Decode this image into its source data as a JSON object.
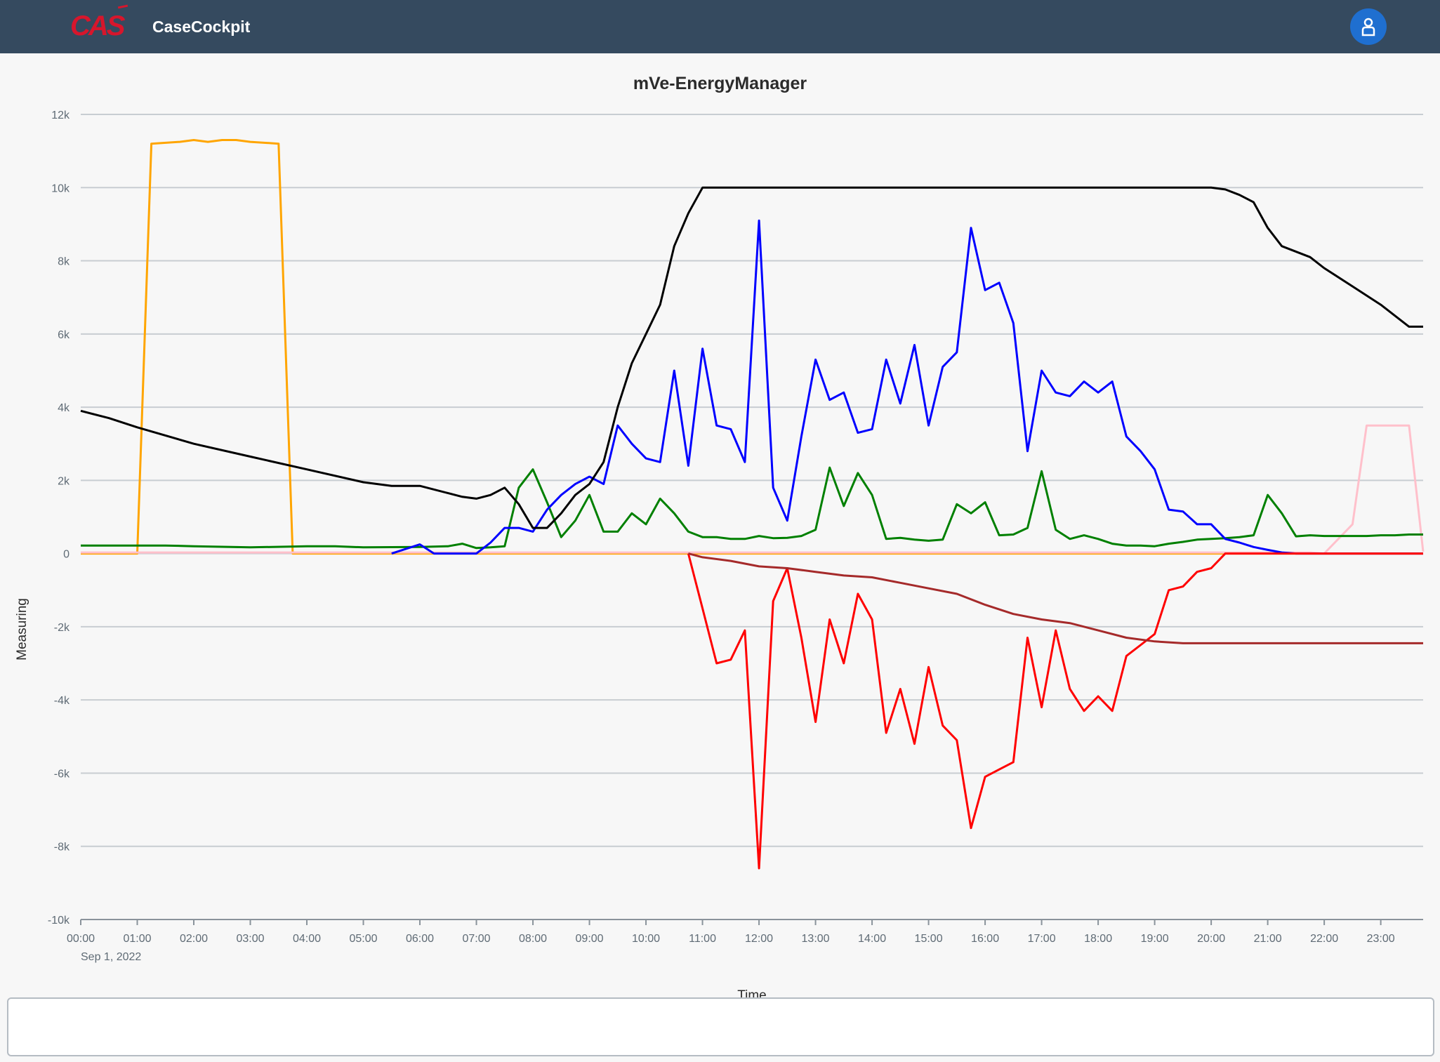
{
  "header": {
    "logo_text": "CAS",
    "app_title": "CaseCockpit",
    "avatar_icon": "user-icon"
  },
  "chart_data": {
    "type": "line",
    "title": "mVe-EnergyManager",
    "ylabel": "Measuring",
    "xlabel": "Time",
    "ylim": [
      -10000,
      12000
    ],
    "xlim": [
      0,
      23.75
    ],
    "y_ticks": [
      {
        "value": 12000,
        "label": "12k"
      },
      {
        "value": 10000,
        "label": "10k"
      },
      {
        "value": 8000,
        "label": "8k"
      },
      {
        "value": 6000,
        "label": "6k"
      },
      {
        "value": 4000,
        "label": "4k"
      },
      {
        "value": 2000,
        "label": "2k"
      },
      {
        "value": 0,
        "label": "0"
      },
      {
        "value": -2000,
        "label": "-2k"
      },
      {
        "value": -4000,
        "label": "-4k"
      },
      {
        "value": -6000,
        "label": "-6k"
      },
      {
        "value": -8000,
        "label": "-8k"
      },
      {
        "value": -10000,
        "label": "-10k"
      }
    ],
    "x_ticks": [
      {
        "value": 0,
        "label": "00:00"
      },
      {
        "value": 1,
        "label": "01:00"
      },
      {
        "value": 2,
        "label": "02:00"
      },
      {
        "value": 3,
        "label": "03:00"
      },
      {
        "value": 4,
        "label": "04:00"
      },
      {
        "value": 5,
        "label": "05:00"
      },
      {
        "value": 6,
        "label": "06:00"
      },
      {
        "value": 7,
        "label": "07:00"
      },
      {
        "value": 8,
        "label": "08:00"
      },
      {
        "value": 9,
        "label": "09:00"
      },
      {
        "value": 10,
        "label": "10:00"
      },
      {
        "value": 11,
        "label": "11:00"
      },
      {
        "value": 12,
        "label": "12:00"
      },
      {
        "value": 13,
        "label": "13:00"
      },
      {
        "value": 14,
        "label": "14:00"
      },
      {
        "value": 15,
        "label": "15:00"
      },
      {
        "value": 16,
        "label": "16:00"
      },
      {
        "value": 17,
        "label": "17:00"
      },
      {
        "value": 18,
        "label": "18:00"
      },
      {
        "value": 19,
        "label": "19:00"
      },
      {
        "value": 20,
        "label": "20:00"
      },
      {
        "value": 21,
        "label": "21:00"
      },
      {
        "value": 22,
        "label": "22:00"
      },
      {
        "value": 23,
        "label": "23:00"
      }
    ],
    "date_label": "Sep 1, 2022",
    "grid": true,
    "series": [
      {
        "color": "#ffa500",
        "points": [
          [
            0,
            0
          ],
          [
            1,
            0
          ],
          [
            1.25,
            11200
          ],
          [
            1.75,
            11250
          ],
          [
            2,
            11300
          ],
          [
            2.25,
            11250
          ],
          [
            2.5,
            11300
          ],
          [
            2.75,
            11300
          ],
          [
            3,
            11250
          ],
          [
            3.5,
            11200
          ],
          [
            3.75,
            0
          ],
          [
            4,
            0
          ],
          [
            23.75,
            0
          ]
        ]
      },
      {
        "color": "#ffc0cb",
        "points": [
          [
            0,
            30
          ],
          [
            21.75,
            30
          ],
          [
            22,
            0
          ],
          [
            22.5,
            800
          ],
          [
            22.75,
            3500
          ],
          [
            23.25,
            3500
          ],
          [
            23.5,
            3500
          ],
          [
            23.75,
            50
          ]
        ]
      },
      {
        "color": "#008000",
        "points": [
          [
            0,
            220
          ],
          [
            1,
            220
          ],
          [
            1.5,
            220
          ],
          [
            2,
            200
          ],
          [
            3,
            170
          ],
          [
            4,
            200
          ],
          [
            4.5,
            200
          ],
          [
            5,
            170
          ],
          [
            6,
            180
          ],
          [
            6.5,
            200
          ],
          [
            6.75,
            270
          ],
          [
            7,
            150
          ],
          [
            7.25,
            170
          ],
          [
            7.5,
            200
          ],
          [
            7.75,
            1800
          ],
          [
            8,
            2300
          ],
          [
            8.25,
            1400
          ],
          [
            8.5,
            450
          ],
          [
            8.75,
            900
          ],
          [
            9,
            1600
          ],
          [
            9.25,
            600
          ],
          [
            9.5,
            600
          ],
          [
            9.75,
            1100
          ],
          [
            10,
            800
          ],
          [
            10.25,
            1500
          ],
          [
            10.5,
            1100
          ],
          [
            10.75,
            600
          ],
          [
            11,
            450
          ],
          [
            11.25,
            450
          ],
          [
            11.5,
            400
          ],
          [
            11.75,
            400
          ],
          [
            12,
            480
          ],
          [
            12.25,
            420
          ],
          [
            12.5,
            430
          ],
          [
            12.75,
            480
          ],
          [
            13,
            650
          ],
          [
            13.25,
            2350
          ],
          [
            13.5,
            1300
          ],
          [
            13.75,
            2200
          ],
          [
            14,
            1600
          ],
          [
            14.25,
            400
          ],
          [
            14.5,
            430
          ],
          [
            14.75,
            380
          ],
          [
            15,
            350
          ],
          [
            15.25,
            380
          ],
          [
            15.5,
            1350
          ],
          [
            15.75,
            1100
          ],
          [
            16,
            1400
          ],
          [
            16.25,
            500
          ],
          [
            16.5,
            520
          ],
          [
            16.75,
            700
          ],
          [
            17,
            2250
          ],
          [
            17.25,
            650
          ],
          [
            17.5,
            400
          ],
          [
            17.75,
            500
          ],
          [
            18,
            400
          ],
          [
            18.25,
            270
          ],
          [
            18.5,
            220
          ],
          [
            18.75,
            220
          ],
          [
            19,
            200
          ],
          [
            19.25,
            270
          ],
          [
            19.5,
            320
          ],
          [
            19.75,
            380
          ],
          [
            20,
            400
          ],
          [
            20.25,
            420
          ],
          [
            20.5,
            450
          ],
          [
            20.75,
            500
          ],
          [
            21,
            1600
          ],
          [
            21.25,
            1100
          ],
          [
            21.5,
            470
          ],
          [
            21.75,
            500
          ],
          [
            22,
            480
          ],
          [
            22.25,
            480
          ],
          [
            22.5,
            480
          ],
          [
            22.75,
            480
          ],
          [
            23,
            500
          ],
          [
            23.25,
            500
          ],
          [
            23.5,
            520
          ],
          [
            23.75,
            520
          ]
        ]
      },
      {
        "color": "#0000ff",
        "points": [
          [
            5.5,
            0
          ],
          [
            6,
            250
          ],
          [
            6.25,
            0
          ],
          [
            7,
            0
          ],
          [
            7.25,
            300
          ],
          [
            7.5,
            700
          ],
          [
            7.75,
            700
          ],
          [
            8,
            600
          ],
          [
            8.25,
            1200
          ],
          [
            8.5,
            1600
          ],
          [
            8.75,
            1900
          ],
          [
            9,
            2100
          ],
          [
            9.25,
            1900
          ],
          [
            9.5,
            3500
          ],
          [
            9.75,
            3000
          ],
          [
            10,
            2600
          ],
          [
            10.25,
            2500
          ],
          [
            10.5,
            5000
          ],
          [
            10.75,
            2400
          ],
          [
            11,
            5600
          ],
          [
            11.25,
            3500
          ],
          [
            11.5,
            3400
          ],
          [
            11.75,
            2500
          ],
          [
            12,
            9100
          ],
          [
            12.25,
            1800
          ],
          [
            12.5,
            900
          ],
          [
            12.75,
            3200
          ],
          [
            13,
            5300
          ],
          [
            13.25,
            4200
          ],
          [
            13.5,
            4400
          ],
          [
            13.75,
            3300
          ],
          [
            14,
            3400
          ],
          [
            14.25,
            5300
          ],
          [
            14.5,
            4100
          ],
          [
            14.75,
            5700
          ],
          [
            15,
            3500
          ],
          [
            15.25,
            5100
          ],
          [
            15.5,
            5500
          ],
          [
            15.75,
            8900
          ],
          [
            16,
            7200
          ],
          [
            16.25,
            7400
          ],
          [
            16.5,
            6300
          ],
          [
            16.75,
            2800
          ],
          [
            17,
            5000
          ],
          [
            17.25,
            4400
          ],
          [
            17.5,
            4300
          ],
          [
            17.75,
            4700
          ],
          [
            18,
            4400
          ],
          [
            18.25,
            4700
          ],
          [
            18.5,
            3200
          ],
          [
            18.75,
            2800
          ],
          [
            19,
            2300
          ],
          [
            19.25,
            1200
          ],
          [
            19.5,
            1150
          ],
          [
            19.75,
            800
          ],
          [
            20,
            800
          ],
          [
            20.25,
            400
          ],
          [
            20.5,
            300
          ],
          [
            20.75,
            180
          ],
          [
            21,
            100
          ],
          [
            21.25,
            30
          ],
          [
            21.5,
            0
          ],
          [
            23.75,
            0
          ]
        ]
      },
      {
        "color": "#000000",
        "points": [
          [
            0,
            3900
          ],
          [
            0.5,
            3700
          ],
          [
            1,
            3450
          ],
          [
            2,
            3000
          ],
          [
            3,
            2650
          ],
          [
            4,
            2300
          ],
          [
            5,
            1950
          ],
          [
            5.5,
            1850
          ],
          [
            6,
            1850
          ],
          [
            6.5,
            1650
          ],
          [
            6.75,
            1550
          ],
          [
            7,
            1500
          ],
          [
            7.25,
            1600
          ],
          [
            7.5,
            1800
          ],
          [
            7.75,
            1350
          ],
          [
            8,
            700
          ],
          [
            8.25,
            700
          ],
          [
            8.5,
            1100
          ],
          [
            8.75,
            1600
          ],
          [
            9,
            1900
          ],
          [
            9.25,
            2500
          ],
          [
            9.5,
            4000
          ],
          [
            9.75,
            5200
          ],
          [
            10,
            6000
          ],
          [
            10.25,
            6800
          ],
          [
            10.5,
            8400
          ],
          [
            10.75,
            9300
          ],
          [
            11,
            10000
          ],
          [
            11.5,
            10000
          ],
          [
            12,
            10000
          ],
          [
            15,
            10000
          ],
          [
            19,
            10000
          ],
          [
            20,
            10000
          ],
          [
            20.25,
            9950
          ],
          [
            20.5,
            9800
          ],
          [
            20.75,
            9600
          ],
          [
            21,
            8900
          ],
          [
            21.25,
            8400
          ],
          [
            21.75,
            8100
          ],
          [
            22,
            7800
          ],
          [
            22.5,
            7300
          ],
          [
            23,
            6800
          ],
          [
            23.5,
            6200
          ],
          [
            23.75,
            6200
          ]
        ]
      },
      {
        "color": "#ff0000",
        "points": [
          [
            10.75,
            0
          ],
          [
            11,
            -1500
          ],
          [
            11.25,
            -3000
          ],
          [
            11.5,
            -2900
          ],
          [
            11.75,
            -2100
          ],
          [
            12,
            -8600
          ],
          [
            12.25,
            -1300
          ],
          [
            12.5,
            -400
          ],
          [
            12.75,
            -2300
          ],
          [
            13,
            -4600
          ],
          [
            13.25,
            -1800
          ],
          [
            13.5,
            -3000
          ],
          [
            13.75,
            -1100
          ],
          [
            14,
            -1800
          ],
          [
            14.25,
            -4900
          ],
          [
            14.5,
            -3700
          ],
          [
            14.75,
            -5200
          ],
          [
            15,
            -3100
          ],
          [
            15.25,
            -4700
          ],
          [
            15.5,
            -5100
          ],
          [
            15.75,
            -7500
          ],
          [
            16,
            -6100
          ],
          [
            16.25,
            -5900
          ],
          [
            16.5,
            -5700
          ],
          [
            16.75,
            -2300
          ],
          [
            17,
            -4200
          ],
          [
            17.25,
            -2100
          ],
          [
            17.5,
            -3700
          ],
          [
            17.75,
            -4300
          ],
          [
            18,
            -3900
          ],
          [
            18.25,
            -4300
          ],
          [
            18.5,
            -2800
          ],
          [
            18.75,
            -2500
          ],
          [
            19,
            -2200
          ],
          [
            19.25,
            -1000
          ],
          [
            19.5,
            -900
          ],
          [
            19.75,
            -500
          ],
          [
            20,
            -400
          ],
          [
            20.25,
            0
          ],
          [
            23.75,
            0
          ]
        ]
      },
      {
        "color": "#a52a2a",
        "points": [
          [
            10.75,
            0
          ],
          [
            11,
            -100
          ],
          [
            11.5,
            -200
          ],
          [
            12,
            -350
          ],
          [
            12.5,
            -400
          ],
          [
            13,
            -500
          ],
          [
            13.5,
            -600
          ],
          [
            14,
            -650
          ],
          [
            14.5,
            -800
          ],
          [
            15,
            -950
          ],
          [
            15.5,
            -1100
          ],
          [
            16,
            -1400
          ],
          [
            16.5,
            -1650
          ],
          [
            17,
            -1800
          ],
          [
            17.5,
            -1900
          ],
          [
            18,
            -2100
          ],
          [
            18.5,
            -2300
          ],
          [
            19,
            -2400
          ],
          [
            19.5,
            -2450
          ],
          [
            20,
            -2450
          ],
          [
            21,
            -2450
          ],
          [
            22,
            -2450
          ],
          [
            23,
            -2450
          ],
          [
            23.75,
            -2450
          ]
        ]
      }
    ]
  }
}
